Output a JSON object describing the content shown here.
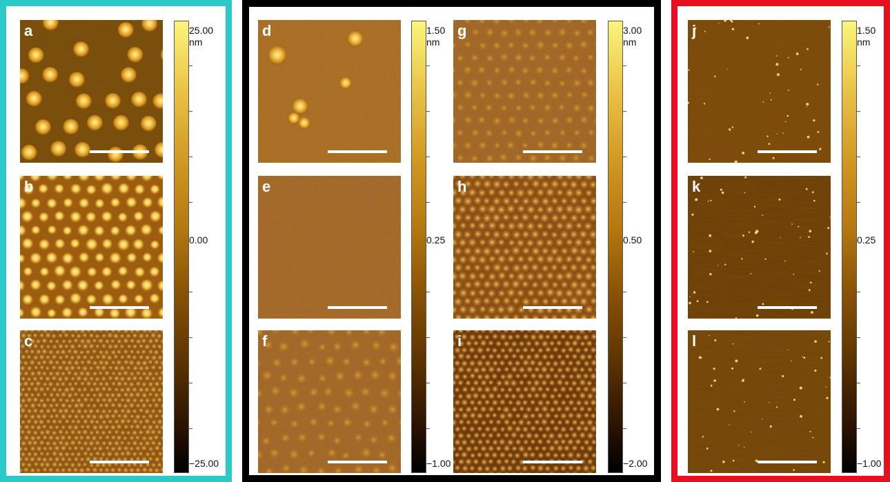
{
  "colors": {
    "teal": "#2cc9c9",
    "black": "#000000",
    "red": "#e8101e"
  },
  "panels": {
    "a": "a",
    "b": "b",
    "c": "c",
    "d": "d",
    "e": "e",
    "f": "f",
    "g": "g",
    "h": "h",
    "i": "i",
    "j": "j",
    "k": "k",
    "l": "l"
  },
  "colorbars": {
    "bar1": {
      "max": "25.00",
      "unit": "nm",
      "mid": "0.00",
      "min": "−25.00"
    },
    "bar2": {
      "max": "1.50",
      "unit": "nm",
      "mid": "0.25",
      "min": "−1.00"
    },
    "bar3": {
      "max": "3.00",
      "unit": "nm",
      "mid": "0.50",
      "min": "−2.00"
    },
    "bar4": {
      "max": "1.50",
      "unit": "nm",
      "mid": "0.25",
      "min": "−1.00"
    }
  }
}
